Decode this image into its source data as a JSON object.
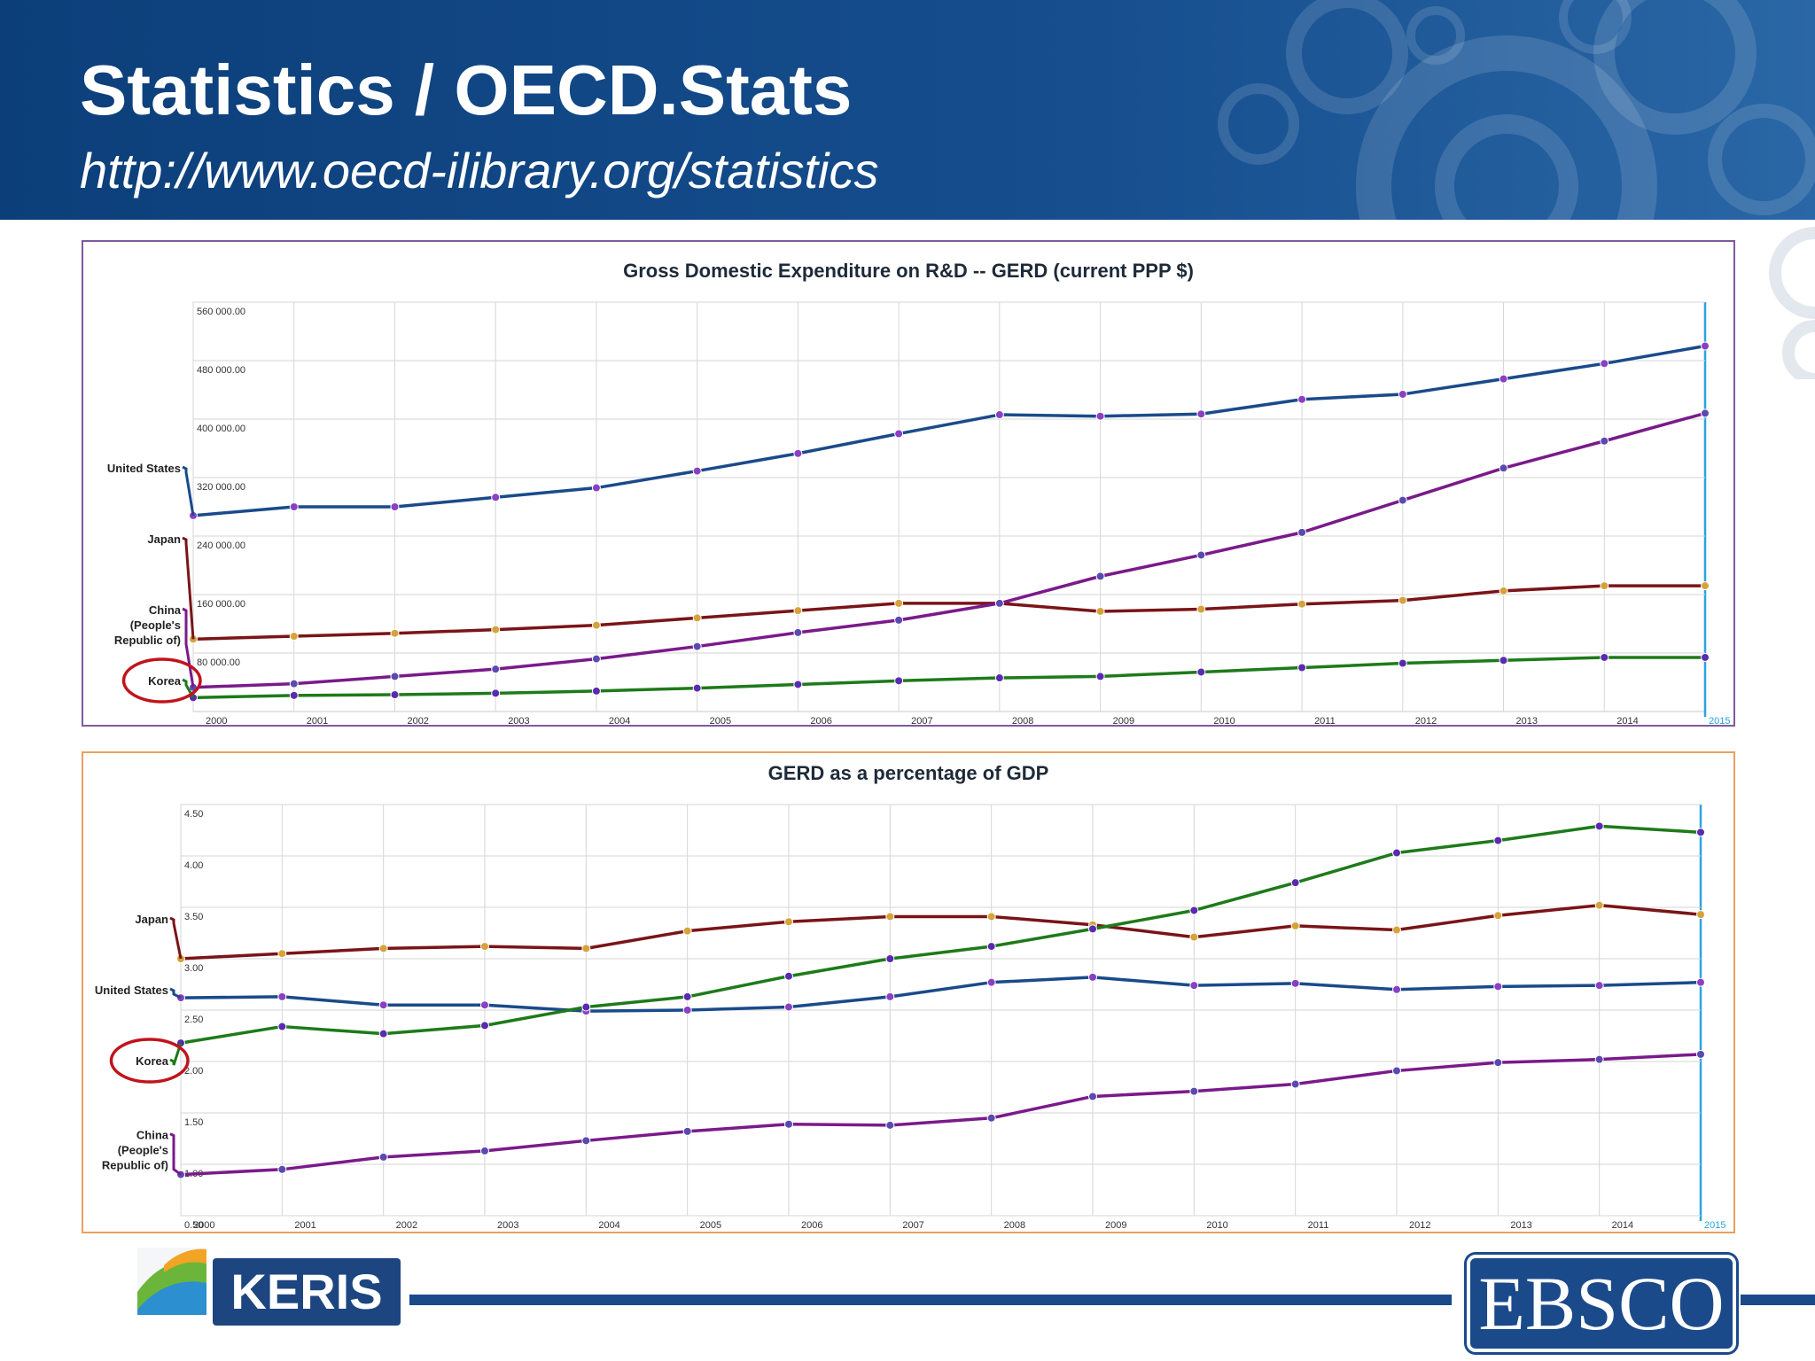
{
  "header": {
    "title": "Statistics / OECD.Stats",
    "subtitle": "http://www.oecd-ilibrary.org/statistics"
  },
  "chart_data": [
    {
      "type": "line",
      "title": "Gross Domestic Expenditure on R&D -- GERD (current PPP $)",
      "x": [
        "2000",
        "2001",
        "2002",
        "2003",
        "2004",
        "2005",
        "2006",
        "2007",
        "2008",
        "2009",
        "2010",
        "2011",
        "2012",
        "2013",
        "2014",
        "2015"
      ],
      "ylim": [
        0,
        560000
      ],
      "yticks": [
        80000,
        160000,
        240000,
        320000,
        400000,
        480000,
        560000
      ],
      "ytick_labels": [
        "80 000.00",
        "160 000.00",
        "240 000.00",
        "320 000.00",
        "400 000.00",
        "480 000.00",
        "560 000.00"
      ],
      "grid": true,
      "highlight": "Korea",
      "series": [
        {
          "name": "United States",
          "color": "#1a4a8a",
          "marker": "#8a3fc4",
          "values": [
            268000,
            280000,
            280000,
            293000,
            306000,
            329000,
            353000,
            380000,
            406000,
            404000,
            407000,
            427000,
            434000,
            455000,
            476000,
            500000
          ]
        },
        {
          "name": "Japan",
          "color": "#7a1418",
          "marker": "#d6a23a",
          "values": [
            99000,
            103000,
            107000,
            112000,
            118000,
            128000,
            138000,
            148000,
            148000,
            137000,
            140000,
            147000,
            152000,
            165000,
            172000,
            172000
          ]
        },
        {
          "name": "China (People's Republic of)",
          "color": "#7a1a8a",
          "marker": "#5a4ab0",
          "values": [
            33000,
            38000,
            48000,
            58000,
            72000,
            89000,
            108000,
            125000,
            148000,
            185000,
            214000,
            245000,
            289000,
            333000,
            370000,
            408000
          ]
        },
        {
          "name": "Korea",
          "color": "#1e7a1a",
          "marker": "#5a2ab0",
          "values": [
            19000,
            22000,
            23000,
            25000,
            28000,
            32000,
            37000,
            42000,
            46000,
            48000,
            54000,
            60000,
            66000,
            70000,
            74000,
            74000
          ]
        }
      ]
    },
    {
      "type": "line",
      "title": "GERD as a percentage of GDP",
      "x": [
        "2000",
        "2001",
        "2002",
        "2003",
        "2004",
        "2005",
        "2006",
        "2007",
        "2008",
        "2009",
        "2010",
        "2011",
        "2012",
        "2013",
        "2014",
        "2015"
      ],
      "ylim": [
        0.5,
        4.5
      ],
      "yticks": [
        0.5,
        1.0,
        1.5,
        2.0,
        2.5,
        3.0,
        3.5,
        4.0,
        4.5
      ],
      "ytick_labels": [
        "0.50",
        "1.00",
        "1.50",
        "2.00",
        "2.50",
        "3.00",
        "3.50",
        "4.00",
        "4.50"
      ],
      "grid": true,
      "highlight": "Korea",
      "series": [
        {
          "name": "Japan",
          "color": "#7a1418",
          "marker": "#d6a23a",
          "values": [
            3.0,
            3.05,
            3.1,
            3.12,
            3.1,
            3.27,
            3.36,
            3.41,
            3.41,
            3.33,
            3.21,
            3.32,
            3.28,
            3.42,
            3.52,
            3.43
          ]
        },
        {
          "name": "United States",
          "color": "#1a4a8a",
          "marker": "#8a3fc4",
          "values": [
            2.62,
            2.63,
            2.55,
            2.55,
            2.49,
            2.5,
            2.53,
            2.63,
            2.77,
            2.82,
            2.74,
            2.76,
            2.7,
            2.73,
            2.74,
            2.77
          ]
        },
        {
          "name": "Korea",
          "color": "#1e7a1a",
          "marker": "#5a2ab0",
          "values": [
            2.18,
            2.34,
            2.27,
            2.35,
            2.53,
            2.63,
            2.83,
            3.0,
            3.12,
            3.29,
            3.47,
            3.74,
            4.03,
            4.15,
            4.29,
            4.23
          ]
        },
        {
          "name": "China (People's Republic of)",
          "color": "#7a1a8a",
          "marker": "#5a4ab0",
          "values": [
            0.9,
            0.95,
            1.07,
            1.13,
            1.23,
            1.32,
            1.39,
            1.38,
            1.45,
            1.66,
            1.71,
            1.78,
            1.91,
            1.99,
            2.02,
            2.07
          ]
        }
      ]
    }
  ],
  "footer": {
    "keris_label": "KERIS",
    "ebsco_label": "EBSCO"
  }
}
